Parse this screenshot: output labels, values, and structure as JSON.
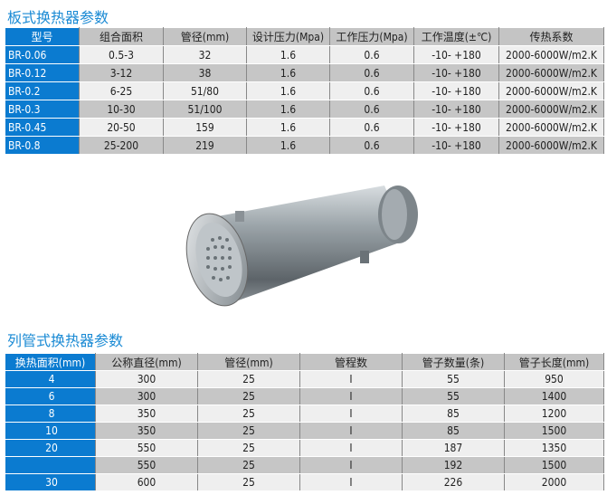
{
  "plate": {
    "title": "板式换热器参数",
    "headers": [
      "型号",
      "组合面积",
      "管径(mm)",
      "设计压力(Mpa)",
      "工作压力(Mpa)",
      "工作温度(±℃)",
      "传热系数"
    ],
    "rows": [
      [
        "BR-0.06",
        "0.5-3",
        "32",
        "1.6",
        "0.6",
        "-10- +180",
        "2000-6000W/m2.K"
      ],
      [
        "BR-0.12",
        "3-12",
        "38",
        "1.6",
        "0.6",
        "-10- +180",
        "2000-6000W/m2.K"
      ],
      [
        "BR-0.2",
        "6-25",
        "51/80",
        "1.6",
        "0.6",
        "-10- +180",
        "2000-6000W/m2.K"
      ],
      [
        "BR-0.3",
        "10-30",
        "51/100",
        "1.6",
        "0.6",
        "-10- +180",
        "2000-6000W/m2.K"
      ],
      [
        "BR-0.45",
        "20-50",
        "159",
        "1.6",
        "0.6",
        "-10- +180",
        "2000-6000W/m2.K"
      ],
      [
        "BR-0.8",
        "25-200",
        "219",
        "1.6",
        "0.6",
        "-10- +180",
        "2000-6000W/m2.K"
      ]
    ]
  },
  "tube": {
    "title": "列管式换热器参数",
    "headers": [
      "换热面积(mm)",
      "公称直径(mm)",
      "管径(mm)",
      "管程数",
      "管子数量(条)",
      "管子长度(mm)"
    ],
    "rows": [
      [
        "4",
        "300",
        "25",
        "I",
        "55",
        "950"
      ],
      [
        "6",
        "300",
        "25",
        "I",
        "55",
        "1400"
      ],
      [
        "8",
        "350",
        "25",
        "I",
        "85",
        "1200"
      ],
      [
        "10",
        "350",
        "25",
        "I",
        "85",
        "1500"
      ],
      [
        "20",
        "550",
        "25",
        "I",
        "187",
        "1350"
      ],
      [
        "",
        "550",
        "25",
        "I",
        "192",
        "1500"
      ],
      [
        "30",
        "600",
        "25",
        "I",
        "226",
        "2000"
      ]
    ]
  },
  "colors": {
    "accent": "#0b7bd0",
    "title": "#1a8ad4"
  }
}
